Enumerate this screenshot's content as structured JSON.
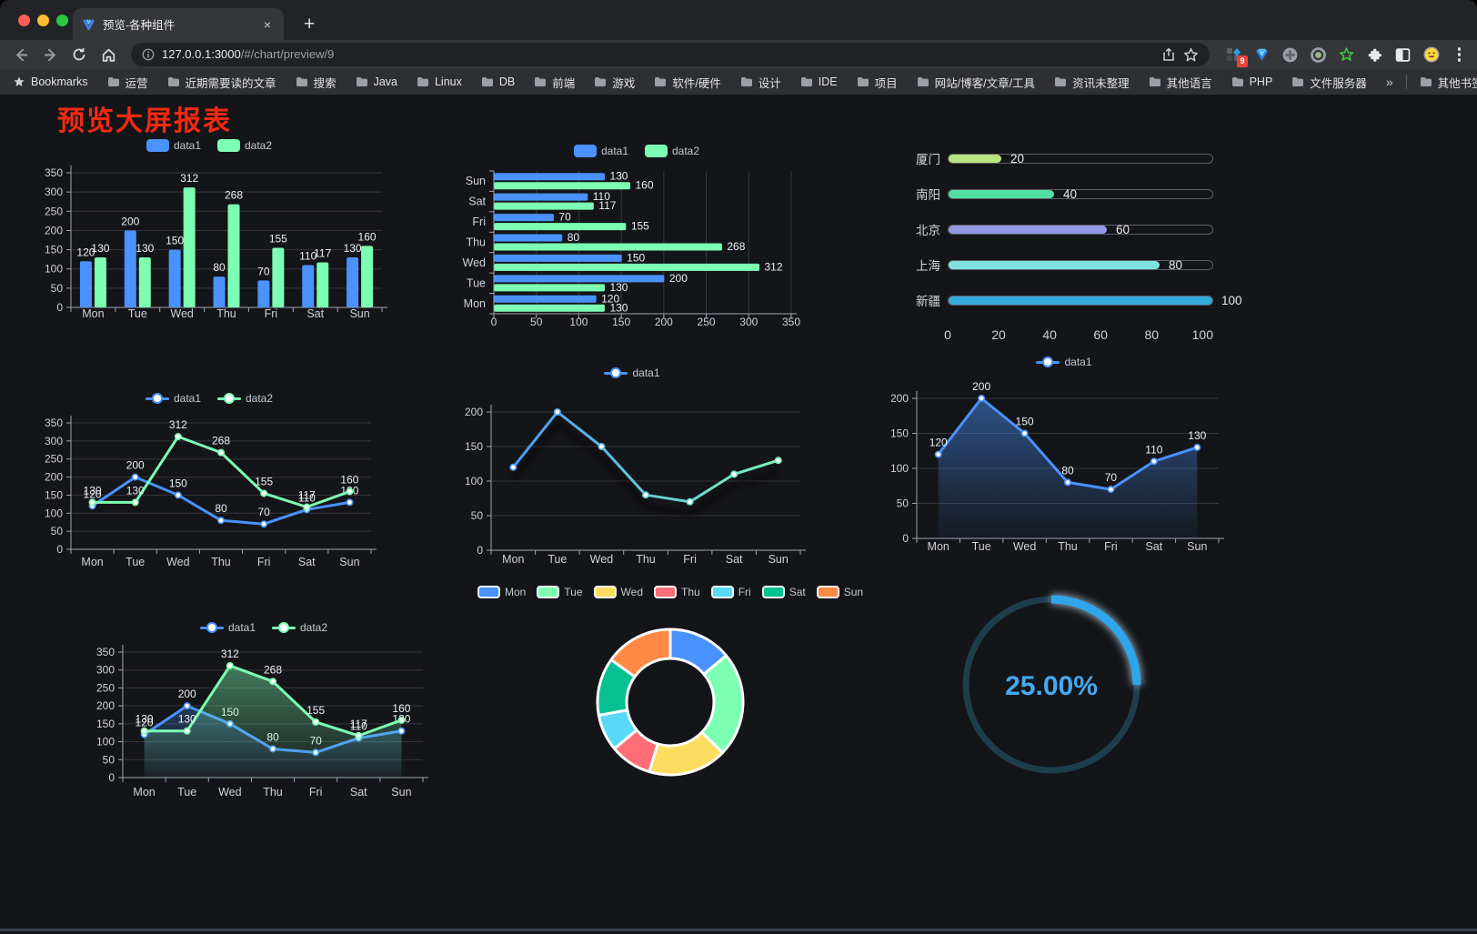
{
  "browser": {
    "tab_title": "预览-各种组件",
    "tab_close_symbol": "×",
    "new_tab_symbol": "+",
    "url_host": "127.0.0.1:3000",
    "url_path": "/#/chart/preview/9",
    "bookmarks_label": "Bookmarks",
    "bookmarks": [
      "运营",
      "近期需要读的文章",
      "搜索",
      "Java",
      "Linux",
      "DB",
      "前端",
      "游戏",
      "软件/硬件",
      "设计",
      "IDE",
      "项目",
      "网站/博客/文章/工具",
      "资讯未整理",
      "其他语言",
      "PHP",
      "文件服务器"
    ],
    "overflow_symbol": "»",
    "other_bookmarks": "其他书签",
    "extension_badge": "9"
  },
  "page": {
    "title": "预览大屏报表",
    "title_color": "#f02a12",
    "background": "#141518"
  },
  "chart_data": [
    {
      "id": "bar-grouped",
      "type": "bar",
      "categories": [
        "Mon",
        "Tue",
        "Wed",
        "Thu",
        "Fri",
        "Sat",
        "Sun"
      ],
      "series": [
        {
          "name": "data1",
          "color": "#4992ff",
          "values": [
            120,
            200,
            150,
            80,
            70,
            110,
            130
          ]
        },
        {
          "name": "data2",
          "color": "#7cffb2",
          "values": [
            130,
            130,
            312,
            268,
            155,
            117,
            160
          ]
        }
      ],
      "ylim": [
        0,
        350
      ],
      "ystep": 50,
      "value_labels": true,
      "legend_position": "top",
      "grid": true
    },
    {
      "id": "bar-horizontal",
      "type": "bar-horizontal",
      "categories": [
        "Mon",
        "Tue",
        "Wed",
        "Thu",
        "Fri",
        "Sat",
        "Sun"
      ],
      "series": [
        {
          "name": "data1",
          "color": "#4992ff",
          "values": [
            120,
            200,
            150,
            80,
            70,
            110,
            130
          ]
        },
        {
          "name": "data2",
          "color": "#7cffb2",
          "values": [
            130,
            130,
            312,
            268,
            155,
            117,
            160
          ]
        }
      ],
      "xlim": [
        0,
        350
      ],
      "xstep": 50,
      "value_labels": true,
      "legend_position": "top",
      "grid": true
    },
    {
      "id": "city-progress",
      "type": "progress",
      "items": [
        {
          "label": "厦门",
          "value": 20,
          "color": "#b9e580"
        },
        {
          "label": "南阳",
          "value": 40,
          "color": "#4fe0a5"
        },
        {
          "label": "北京",
          "value": 60,
          "color": "#9097e3"
        },
        {
          "label": "上海",
          "value": 80,
          "color": "#7de3e0"
        },
        {
          "label": "新疆",
          "value": 100,
          "color": "#35aadd"
        }
      ],
      "xticks": [
        0,
        20,
        40,
        60,
        80,
        100
      ],
      "xlim": [
        0,
        100
      ]
    },
    {
      "id": "line-dual",
      "type": "line",
      "categories": [
        "Mon",
        "Tue",
        "Wed",
        "Thu",
        "Fri",
        "Sat",
        "Sun"
      ],
      "series": [
        {
          "name": "data1",
          "color": "#4992ff",
          "values": [
            120,
            200,
            150,
            80,
            70,
            110,
            130
          ]
        },
        {
          "name": "data2",
          "color": "#7cffb2",
          "values": [
            130,
            130,
            312,
            268,
            155,
            117,
            160
          ]
        }
      ],
      "ylim": [
        0,
        350
      ],
      "ystep": 50,
      "value_labels": true,
      "legend_position": "top",
      "grid": true
    },
    {
      "id": "line-gradient",
      "type": "line",
      "categories": [
        "Mon",
        "Tue",
        "Wed",
        "Thu",
        "Fri",
        "Sat",
        "Sun"
      ],
      "series": [
        {
          "name": "data1",
          "gradient": [
            "#4992ff",
            "#7cffb2"
          ],
          "values": [
            120,
            200,
            150,
            80,
            70,
            110,
            130
          ]
        }
      ],
      "ylim": [
        0,
        200
      ],
      "ystep": 50,
      "value_labels": false,
      "shadow": true,
      "legend_position": "top",
      "grid": true
    },
    {
      "id": "area-single",
      "type": "line",
      "categories": [
        "Mon",
        "Tue",
        "Wed",
        "Thu",
        "Fri",
        "Sat",
        "Sun"
      ],
      "series": [
        {
          "name": "data1",
          "color": "#4992ff",
          "values": [
            120,
            200,
            150,
            80,
            70,
            110,
            130
          ],
          "area": true
        }
      ],
      "ylim": [
        0,
        200
      ],
      "ystep": 50,
      "value_labels": true,
      "legend_position": "top",
      "grid": true
    },
    {
      "id": "area-dual",
      "type": "line",
      "categories": [
        "Mon",
        "Tue",
        "Wed",
        "Thu",
        "Fri",
        "Sat",
        "Sun"
      ],
      "series": [
        {
          "name": "data1",
          "color": "#4992ff",
          "values": [
            120,
            200,
            150,
            80,
            70,
            110,
            130
          ],
          "area": true
        },
        {
          "name": "data2",
          "color": "#7cffb2",
          "values": [
            130,
            130,
            312,
            268,
            155,
            117,
            160
          ],
          "area": true
        }
      ],
      "ylim": [
        0,
        350
      ],
      "ystep": 50,
      "value_labels": true,
      "legend_position": "top",
      "grid": true
    },
    {
      "id": "donut",
      "type": "pie",
      "categories": [
        "Mon",
        "Tue",
        "Wed",
        "Thu",
        "Fri",
        "Sat",
        "Sun"
      ],
      "values": [
        120,
        200,
        150,
        80,
        70,
        110,
        130
      ],
      "colors": [
        "#4992ff",
        "#7cffb2",
        "#fddd60",
        "#ff6e76",
        "#58d9f9",
        "#05c091",
        "#ff8a45"
      ],
      "legend_position": "top",
      "inner_radius": true,
      "border_color": "#ffffff"
    },
    {
      "id": "gauge",
      "type": "gauge",
      "value": 25,
      "label": "25.00%",
      "color": "#2ea6ec",
      "glow_color": "#bfe3fa",
      "track_color": "#1d3e4c",
      "text_color": "#44a9f2"
    }
  ]
}
